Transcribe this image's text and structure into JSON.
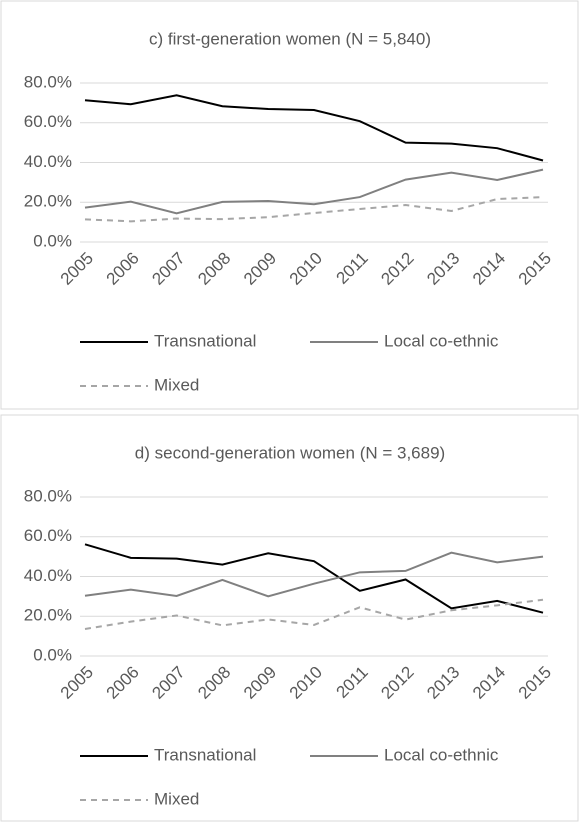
{
  "chart_data": [
    {
      "type": "line",
      "title": "c) first-generation women (N = 5,840)",
      "categories": [
        "2005",
        "2006",
        "2007",
        "2008",
        "2009",
        "2010",
        "2011",
        "2012",
        "2013",
        "2014",
        "2015"
      ],
      "series": [
        {
          "name": "Transnational",
          "color": "#000000",
          "dashed": false,
          "values": [
            71.3,
            69.3,
            73.8,
            68.3,
            66.9,
            66.4,
            60.8,
            50.0,
            49.5,
            47.2,
            41.0
          ]
        },
        {
          "name": "Local co-ethnic",
          "color": "#808080",
          "dashed": false,
          "values": [
            17.3,
            20.3,
            14.4,
            20.2,
            20.6,
            19.0,
            22.6,
            31.4,
            34.9,
            31.2,
            36.4
          ]
        },
        {
          "name": "Mixed",
          "color": "#a6a6a6",
          "dashed": true,
          "values": [
            11.4,
            10.4,
            11.8,
            11.5,
            12.5,
            14.6,
            16.6,
            18.6,
            15.6,
            21.6,
            22.6
          ]
        }
      ],
      "ylim": [
        0,
        80
      ],
      "yticks": [
        {
          "value": 0,
          "label": "0.0%"
        },
        {
          "value": 20,
          "label": "20.0%"
        },
        {
          "value": 40,
          "label": "40.0%"
        },
        {
          "value": 60,
          "label": "60.0%"
        },
        {
          "value": 80,
          "label": "80.0%"
        }
      ],
      "grid": true
    },
    {
      "type": "line",
      "title": "d) second-generation women (N = 3,689)",
      "categories": [
        "2005",
        "2006",
        "2007",
        "2008",
        "2009",
        "2010",
        "2011",
        "2012",
        "2013",
        "2014",
        "2015"
      ],
      "series": [
        {
          "name": "Transnational",
          "color": "#000000",
          "dashed": false,
          "values": [
            56.2,
            49.4,
            49.0,
            46.0,
            51.7,
            47.7,
            32.8,
            38.5,
            24.0,
            27.7,
            21.8
          ]
        },
        {
          "name": "Local co-ethnic",
          "color": "#808080",
          "dashed": false,
          "values": [
            30.3,
            33.4,
            30.2,
            38.3,
            30.0,
            36.4,
            42.1,
            42.8,
            52.0,
            47.1,
            50.0
          ]
        },
        {
          "name": "Mixed",
          "color": "#a6a6a6",
          "dashed": true,
          "values": [
            13.6,
            17.3,
            20.4,
            15.4,
            18.4,
            15.6,
            24.5,
            18.3,
            23.0,
            25.5,
            28.3
          ]
        }
      ],
      "ylim": [
        0,
        80
      ],
      "yticks": [
        {
          "value": 0,
          "label": "0.0%"
        },
        {
          "value": 20,
          "label": "20.0%"
        },
        {
          "value": 40,
          "label": "40.0%"
        },
        {
          "value": 60,
          "label": "60.0%"
        },
        {
          "value": 80,
          "label": "80.0%"
        }
      ],
      "grid": true
    }
  ]
}
